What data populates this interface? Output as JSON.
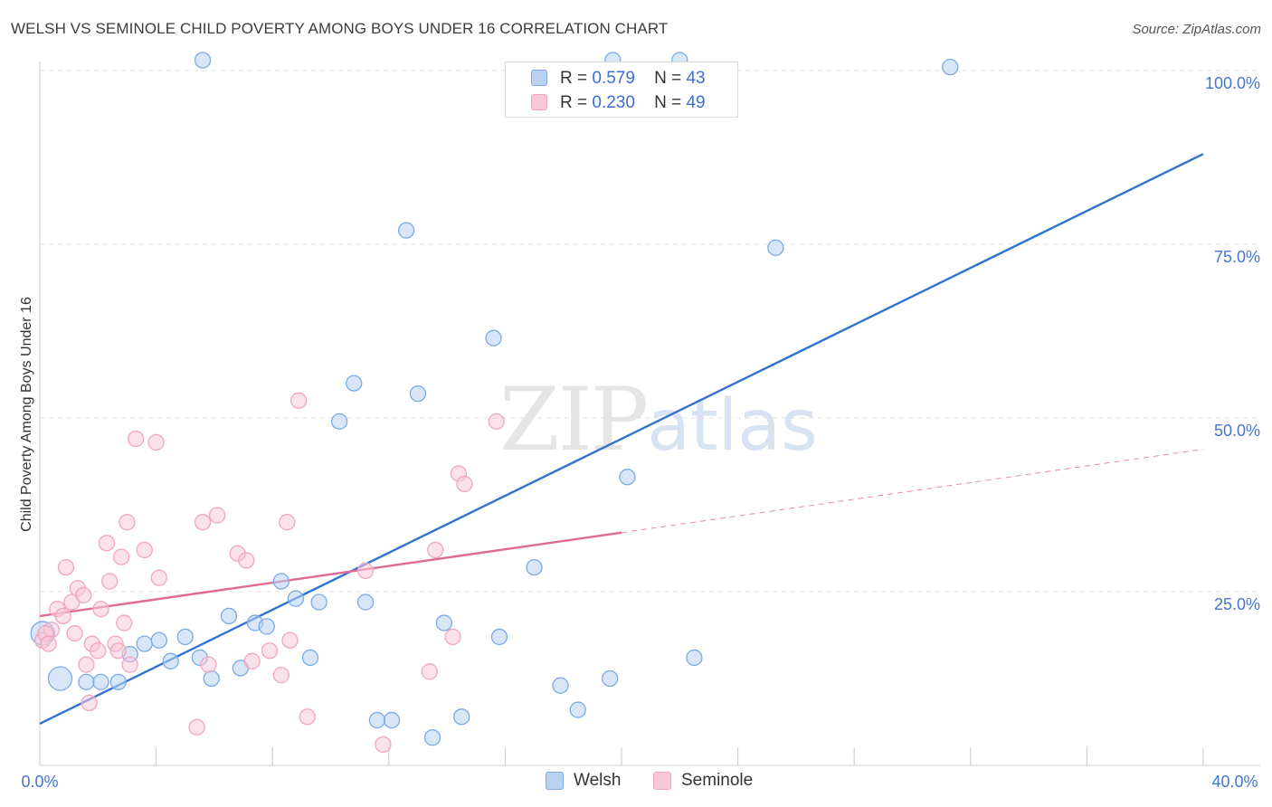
{
  "chart_data": {
    "type": "scatter",
    "title": "WELSH VS SEMINOLE CHILD POVERTY AMONG BOYS UNDER 16 CORRELATION CHART",
    "source": "Source: ZipAtlas.com",
    "xlabel": "",
    "ylabel": "Child Poverty Among Boys Under 16",
    "xlim": [
      0,
      40
    ],
    "ylim": [
      0,
      100
    ],
    "x_tick_labels": [
      "0.0%",
      "40.0%"
    ],
    "y_ticks": [
      25,
      50,
      75,
      100
    ],
    "y_tick_labels": [
      "25.0%",
      "50.0%",
      "75.0%",
      "100.0%"
    ],
    "grid": true,
    "legend_position": "top-center",
    "legend": [
      {
        "series": "Welsh",
        "r_label": "R =",
        "r_value": "0.579",
        "n_label": "N =",
        "n_value": "43"
      },
      {
        "series": "Seminole",
        "r_label": "R =",
        "r_value": "0.230",
        "n_label": "N =",
        "n_value": "49"
      }
    ],
    "watermark": {
      "zip": "ZIP",
      "atlas": "atlas"
    },
    "series": [
      {
        "name": "Welsh",
        "color": "#7aaae8",
        "fill": "#b9d1f2",
        "line_color": "#2f73d0",
        "trend": {
          "x0": 0,
          "y0": 6,
          "x1": 40,
          "y1": 88,
          "dashed_from": null
        },
        "points": [
          [
            0.1,
            19,
            2
          ],
          [
            0.7,
            12.5,
            2
          ],
          [
            1.6,
            12,
            1
          ],
          [
            2.1,
            12,
            1
          ],
          [
            2.7,
            12,
            1
          ],
          [
            3.1,
            16,
            1
          ],
          [
            3.6,
            17.5,
            1
          ],
          [
            4.1,
            18,
            1
          ],
          [
            4.5,
            15,
            1
          ],
          [
            5.0,
            18.5,
            1
          ],
          [
            5.5,
            15.5,
            1
          ],
          [
            5.9,
            12.5,
            1
          ],
          [
            6.5,
            21.5,
            1
          ],
          [
            6.9,
            14,
            1
          ],
          [
            7.4,
            20.5,
            1
          ],
          [
            7.8,
            20,
            1
          ],
          [
            8.3,
            26.5,
            1
          ],
          [
            8.8,
            24,
            1
          ],
          [
            9.3,
            15.5,
            1
          ],
          [
            9.6,
            23.5,
            1
          ],
          [
            10.3,
            49.5,
            1
          ],
          [
            10.8,
            55,
            1
          ],
          [
            11.2,
            23.5,
            1
          ],
          [
            11.6,
            6.5,
            1
          ],
          [
            12.1,
            6.5,
            1
          ],
          [
            12.6,
            77,
            1
          ],
          [
            13.0,
            53.5,
            1
          ],
          [
            13.5,
            4,
            1
          ],
          [
            13.9,
            20.5,
            1
          ],
          [
            14.5,
            7,
            1
          ],
          [
            15.6,
            61.5,
            1
          ],
          [
            15.8,
            18.5,
            1
          ],
          [
            17.0,
            28.5,
            1
          ],
          [
            17.9,
            11.5,
            1
          ],
          [
            18.5,
            8,
            1
          ],
          [
            19.6,
            12.5,
            1
          ],
          [
            20.2,
            41.5,
            1
          ],
          [
            22.5,
            15.5,
            1
          ],
          [
            25.3,
            74.5,
            1
          ],
          [
            31.3,
            100.5,
            1
          ],
          [
            19.7,
            101.5,
            1
          ],
          [
            22.0,
            101.5,
            1
          ],
          [
            5.6,
            101.5,
            1
          ]
        ]
      },
      {
        "name": "Seminole",
        "color": "#f0a6bf",
        "fill": "#f8c8d8",
        "line_color": "#e06a92",
        "trend": {
          "x0": 0,
          "y0": 21.5,
          "x1": 40,
          "y1": 45.5,
          "dashed_from": 20
        },
        "points": [
          [
            0.1,
            18,
            1
          ],
          [
            0.4,
            19.5,
            1
          ],
          [
            0.6,
            22.5,
            1
          ],
          [
            0.8,
            21.5,
            1
          ],
          [
            0.9,
            28.5,
            1
          ],
          [
            1.1,
            23.5,
            1
          ],
          [
            1.2,
            19,
            1
          ],
          [
            1.3,
            25.5,
            1
          ],
          [
            1.5,
            24.5,
            1
          ],
          [
            1.6,
            14.5,
            1
          ],
          [
            1.7,
            9,
            1
          ],
          [
            1.8,
            17.5,
            1
          ],
          [
            2.0,
            16.5,
            1
          ],
          [
            2.1,
            22.5,
            1
          ],
          [
            2.3,
            32,
            1
          ],
          [
            2.4,
            26.5,
            1
          ],
          [
            2.6,
            17.5,
            1
          ],
          [
            2.7,
            16.5,
            1
          ],
          [
            2.8,
            30,
            1
          ],
          [
            2.9,
            20.5,
            1
          ],
          [
            3.0,
            35,
            1
          ],
          [
            3.1,
            14.5,
            1
          ],
          [
            3.3,
            47,
            1
          ],
          [
            3.6,
            31,
            1
          ],
          [
            4.0,
            46.5,
            1
          ],
          [
            4.1,
            27,
            1
          ],
          [
            5.4,
            5.5,
            1
          ],
          [
            5.6,
            35,
            1
          ],
          [
            5.8,
            14.5,
            1
          ],
          [
            6.1,
            36,
            1
          ],
          [
            6.8,
            30.5,
            1
          ],
          [
            7.1,
            29.5,
            1
          ],
          [
            7.3,
            15,
            1
          ],
          [
            7.9,
            16.5,
            1
          ],
          [
            8.3,
            13,
            1
          ],
          [
            8.5,
            35,
            1
          ],
          [
            8.6,
            18,
            1
          ],
          [
            8.9,
            52.5,
            1
          ],
          [
            9.2,
            7,
            1
          ],
          [
            11.2,
            28,
            1
          ],
          [
            11.8,
            3,
            1
          ],
          [
            13.4,
            13.5,
            1
          ],
          [
            13.6,
            31,
            1
          ],
          [
            14.2,
            18.5,
            1
          ],
          [
            14.4,
            42,
            1
          ],
          [
            14.6,
            40.5,
            1
          ],
          [
            15.7,
            49.5,
            1
          ],
          [
            0.2,
            19,
            1
          ],
          [
            0.3,
            17.5,
            1
          ]
        ]
      }
    ]
  }
}
